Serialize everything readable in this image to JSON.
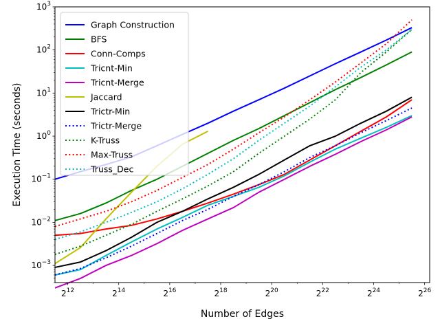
{
  "chart_data": {
    "type": "line",
    "title": "",
    "xlabel": "Number of Edges",
    "ylabel": "Execution Time (seconds)",
    "x_scale": "log2",
    "y_scale": "log10",
    "xlim": [
      2896,
      77000000
    ],
    "ylim": [
      0.0004,
      1000
    ],
    "x_ticks": [
      {
        "value": 4096,
        "base": "2",
        "exp": "12"
      },
      {
        "value": 16384,
        "base": "2",
        "exp": "14"
      },
      {
        "value": 65536,
        "base": "2",
        "exp": "16"
      },
      {
        "value": 262144,
        "base": "2",
        "exp": "18"
      },
      {
        "value": 1048576,
        "base": "2",
        "exp": "20"
      },
      {
        "value": 4194304,
        "base": "2",
        "exp": "22"
      },
      {
        "value": 16777216,
        "base": "2",
        "exp": "24"
      },
      {
        "value": 67108864,
        "base": "2",
        "exp": "26"
      }
    ],
    "y_ticks": [
      {
        "value": 0.001,
        "base": "10",
        "exp": "−3"
      },
      {
        "value": 0.01,
        "base": "10",
        "exp": "−2"
      },
      {
        "value": 0.1,
        "base": "10",
        "exp": "−1"
      },
      {
        "value": 1,
        "base": "10",
        "exp": "0"
      },
      {
        "value": 10,
        "base": "10",
        "exp": "1"
      },
      {
        "value": 100,
        "base": "10",
        "exp": "2"
      },
      {
        "value": 1000,
        "base": "10",
        "exp": "3"
      }
    ],
    "grid": false,
    "legend": {
      "position": "top-left"
    },
    "series": [
      {
        "name": "Graph Construction",
        "color": "#0000ff",
        "style": "solid",
        "x": [
          2896,
          5793,
          11585,
          23170,
          46341,
          92682,
          185364,
          370728,
          741455,
          1482910,
          2965821,
          5931642,
          11863283,
          23726566,
          47453133
        ],
        "y": [
          0.1,
          0.15,
          0.22,
          0.33,
          0.6,
          1.1,
          2.0,
          3.8,
          7.0,
          13,
          25,
          48,
          90,
          170,
          330
        ]
      },
      {
        "name": "BFS",
        "color": "#008000",
        "style": "solid",
        "x": [
          2896,
          5793,
          11585,
          23170,
          46341,
          92682,
          185364,
          370728,
          741455,
          1482910,
          2965821,
          5931642,
          11863283,
          23726566,
          47453133
        ],
        "y": [
          0.011,
          0.016,
          0.028,
          0.055,
          0.1,
          0.2,
          0.4,
          0.8,
          1.5,
          3.0,
          6.0,
          12,
          23,
          45,
          90
        ]
      },
      {
        "name": "Conn-Comps",
        "color": "#ff0000",
        "style": "solid",
        "x": [
          2896,
          5793,
          11585,
          23170,
          46341,
          92682,
          185364,
          370728,
          741455,
          1482910,
          2965821,
          5931642,
          11863283,
          23726566,
          47453133
        ],
        "y": [
          0.005,
          0.0055,
          0.007,
          0.0085,
          0.012,
          0.018,
          0.028,
          0.045,
          0.075,
          0.13,
          0.28,
          0.6,
          1.3,
          2.8,
          7.0
        ]
      },
      {
        "name": "Tricnt-Min",
        "color": "#00bfbf",
        "style": "solid",
        "x": [
          2896,
          5793,
          11585,
          23170,
          46341,
          92682,
          185364,
          370728,
          741455,
          1482910,
          2965821,
          5931642,
          11863283,
          23726566,
          47453133
        ],
        "y": [
          0.0006,
          0.0008,
          0.0017,
          0.0035,
          0.007,
          0.013,
          0.025,
          0.04,
          0.065,
          0.12,
          0.25,
          0.5,
          0.9,
          1.6,
          3.0
        ]
      },
      {
        "name": "Tricnt-Merge",
        "color": "#bf00bf",
        "style": "solid",
        "x": [
          2896,
          5793,
          11585,
          23170,
          46341,
          92682,
          185364,
          370728,
          741455,
          1482910,
          2965821,
          5931642,
          11863283,
          23726566,
          47453133
        ],
        "y": [
          0.0003,
          0.0005,
          0.001,
          0.0017,
          0.0032,
          0.0065,
          0.012,
          0.022,
          0.05,
          0.1,
          0.2,
          0.38,
          0.75,
          1.4,
          2.8
        ]
      },
      {
        "name": "Jaccard",
        "color": "#bfbf00",
        "style": "solid",
        "x": [
          2896,
          5793,
          11585,
          23170,
          46341,
          92682,
          185364
        ],
        "y": [
          0.0011,
          0.0026,
          0.012,
          0.05,
          0.2,
          0.65,
          1.3
        ]
      },
      {
        "name": "Trictr-Min",
        "color": "#000000",
        "style": "solid",
        "x": [
          2896,
          5793,
          11585,
          23170,
          46341,
          92682,
          185364,
          370728,
          741455,
          1482910,
          2965821,
          5931642,
          11863283,
          23726566,
          47453133
        ],
        "y": [
          0.0009,
          0.0012,
          0.0022,
          0.0045,
          0.01,
          0.018,
          0.035,
          0.065,
          0.13,
          0.28,
          0.6,
          1.0,
          2.0,
          3.8,
          8.0
        ]
      },
      {
        "name": "Trictr-Merge",
        "color": "#0000ff",
        "style": "dotted",
        "x": [
          2896,
          5793,
          11585,
          23170,
          46341,
          92682,
          185364,
          370728,
          741455,
          1482910,
          2965821,
          5931642,
          11863283,
          23726566,
          47453133
        ],
        "y": [
          0.0006,
          0.00085,
          0.0015,
          0.0028,
          0.0055,
          0.011,
          0.02,
          0.04,
          0.075,
          0.15,
          0.32,
          0.6,
          1.2,
          2.3,
          4.5
        ]
      },
      {
        "name": "K-Truss",
        "color": "#008000",
        "style": "dotted",
        "x": [
          2896,
          5793,
          11585,
          23170,
          46341,
          92682,
          185364,
          370728,
          741455,
          1482910,
          2965821,
          5931642,
          11863283,
          23726566,
          47453133
        ],
        "y": [
          0.0018,
          0.0028,
          0.005,
          0.009,
          0.018,
          0.035,
          0.07,
          0.15,
          0.4,
          1.0,
          2.5,
          7.0,
          30,
          90,
          300
        ]
      },
      {
        "name": "Max-Truss",
        "color": "#ff0000",
        "style": "dotted",
        "x": [
          2896,
          5793,
          11585,
          23170,
          46341,
          92682,
          185364,
          370728,
          741455,
          1482910,
          2965821,
          5931642,
          11863283,
          23726566,
          47453133
        ],
        "y": [
          0.008,
          0.012,
          0.018,
          0.03,
          0.055,
          0.11,
          0.22,
          0.5,
          1.2,
          2.8,
          7.0,
          18,
          50,
          140,
          500
        ]
      },
      {
        "name": "Truss_Dec",
        "color": "#00bfbf",
        "style": "dotted",
        "x": [
          2896,
          5793,
          11585,
          23170,
          46341,
          92682,
          185364,
          370728,
          741455,
          1482910,
          2965821,
          5931642,
          11863283,
          23726566,
          47453133
        ],
        "y": [
          0.004,
          0.006,
          0.01,
          0.017,
          0.03,
          0.06,
          0.13,
          0.3,
          0.8,
          2.0,
          5.0,
          14,
          40,
          100,
          300
        ]
      }
    ]
  }
}
